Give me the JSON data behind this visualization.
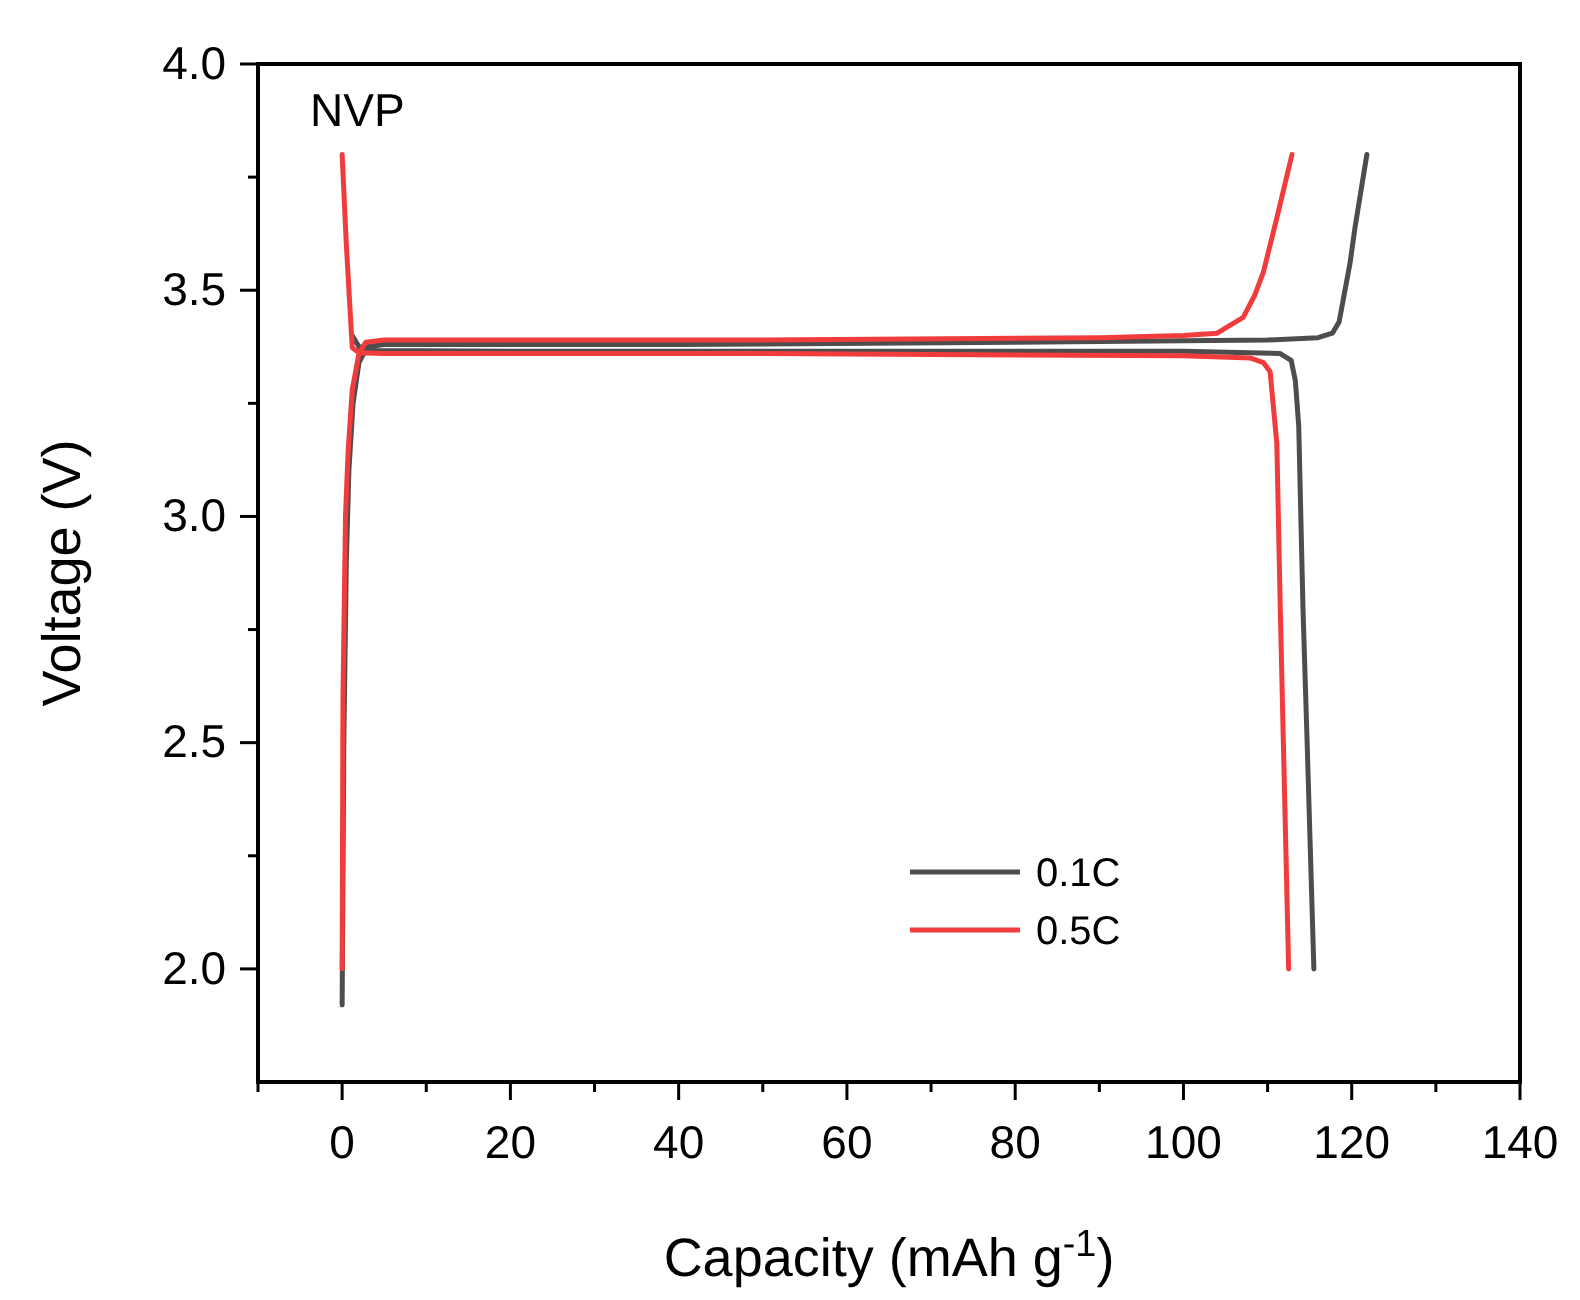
{
  "chart_data": {
    "type": "line",
    "xlabel": "Capacity (mAh g$^{-1}$)",
    "ylabel": "Voltage (V)",
    "annotations": [
      "NVP"
    ],
    "xlim": [
      -10,
      140
    ],
    "xticks": [
      0,
      {
        "value": 10,
        "label": null
      },
      20,
      {
        "value": 30,
        "label": null
      },
      40,
      {
        "value": 50,
        "label": null
      },
      60,
      {
        "value": 70,
        "label": null
      },
      80,
      {
        "value": 90,
        "label": null
      },
      100,
      {
        "value": 110,
        "label": null
      },
      120,
      {
        "value": 130,
        "label": null
      },
      140,
      {
        "value": -10,
        "label": null
      }
    ],
    "ylim": [
      1.75,
      4.0
    ],
    "yticks": [
      {
        "value": 2.0,
        "label": "2.0"
      },
      {
        "value": 2.25,
        "label": null
      },
      {
        "value": 2.5,
        "label": "2.5"
      },
      {
        "value": 2.75,
        "label": null
      },
      {
        "value": 3.0,
        "label": "3.0"
      },
      {
        "value": 3.25,
        "label": null
      },
      {
        "value": 3.5,
        "label": "3.5"
      },
      {
        "value": 3.75,
        "label": null
      },
      {
        "value": 4.0,
        "label": "4.0"
      }
    ],
    "grid": false,
    "legend": "bottom right",
    "marker": "none",
    "line_style": "solid",
    "series": [
      {
        "name": "0.1C",
        "color": "#4d4d4d",
        "x": [
          1.2,
          2,
          4,
          20,
          60,
          100,
          111.5,
          112.8,
          113.3,
          113.7,
          114.2,
          114.7,
          115.5,
          null,
          0,
          0.2,
          0.5,
          0.8,
          1.3,
          2,
          3,
          5,
          40,
          80,
          110,
          116,
          117.7,
          118.5,
          119,
          119.8,
          120.4,
          121.8
        ],
        "values": [
          3.4,
          3.375,
          3.367,
          3.365,
          3.365,
          3.365,
          3.36,
          3.345,
          3.3,
          3.2,
          2.8,
          2.5,
          2.0,
          null,
          1.92,
          2.5,
          2.9,
          3.1,
          3.25,
          3.34,
          3.375,
          3.38,
          3.38,
          3.385,
          3.39,
          3.395,
          3.405,
          3.43,
          3.48,
          3.56,
          3.64,
          3.8
        ]
      },
      {
        "name": "0.5C",
        "color": "#f03c3c",
        "x": [
          0,
          0.5,
          1.2,
          2,
          5,
          50,
          100,
          108,
          109.5,
          110.3,
          111.1,
          111.5,
          112,
          112.5,
          null,
          0,
          0.1,
          0.4,
          0.7,
          1.2,
          2,
          2.8,
          5,
          50,
          90,
          100,
          104,
          107.1,
          108.5,
          109.5,
          111.1,
          112.9
        ],
        "values": [
          3.8,
          3.6,
          3.373,
          3.362,
          3.36,
          3.36,
          3.355,
          3.35,
          3.34,
          3.32,
          3.16,
          2.8,
          2.4,
          2.0,
          null,
          2.0,
          2.6,
          3.0,
          3.14,
          3.28,
          3.36,
          3.385,
          3.39,
          3.39,
          3.395,
          3.4,
          3.405,
          3.44,
          3.49,
          3.54,
          3.66,
          3.8
        ]
      }
    ]
  }
}
